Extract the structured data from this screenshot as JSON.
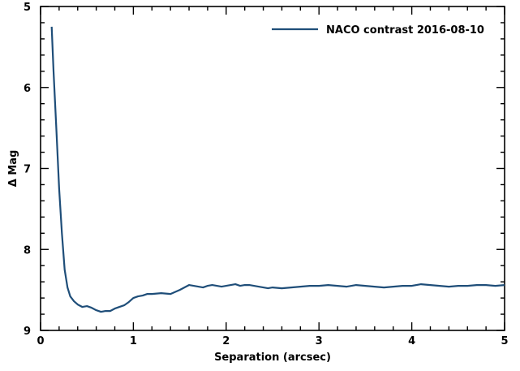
{
  "chart_data": {
    "type": "line",
    "title": "",
    "xlabel": "Separation (arcsec)",
    "ylabel": "Δ Mag",
    "xlim": [
      0,
      5
    ],
    "ylim": [
      5,
      9
    ],
    "y_inverted": true,
    "x_ticks": [
      0,
      1,
      2,
      3,
      4,
      5
    ],
    "y_ticks": [
      5,
      6,
      7,
      8,
      9
    ],
    "grid": false,
    "legend_position": "top-right",
    "series": [
      {
        "name": "NACO contrast 2016-08-10",
        "color": "#1f4e79",
        "x": [
          0.12,
          0.14,
          0.17,
          0.2,
          0.23,
          0.26,
          0.29,
          0.32,
          0.36,
          0.4,
          0.45,
          0.5,
          0.55,
          0.6,
          0.65,
          0.7,
          0.75,
          0.8,
          0.85,
          0.9,
          0.95,
          1.0,
          1.05,
          1.1,
          1.15,
          1.2,
          1.3,
          1.4,
          1.5,
          1.55,
          1.6,
          1.65,
          1.7,
          1.75,
          1.8,
          1.85,
          1.9,
          1.95,
          2.0,
          2.05,
          2.1,
          2.15,
          2.2,
          2.25,
          2.3,
          2.35,
          2.4,
          2.45,
          2.5,
          2.6,
          2.7,
          2.8,
          2.9,
          3.0,
          3.1,
          3.2,
          3.3,
          3.4,
          3.5,
          3.6,
          3.7,
          3.8,
          3.9,
          4.0,
          4.1,
          4.2,
          4.3,
          4.4,
          4.5,
          4.6,
          4.7,
          4.8,
          4.9,
          5.0
        ],
        "y": [
          5.25,
          5.8,
          6.5,
          7.25,
          7.8,
          8.25,
          8.47,
          8.58,
          8.64,
          8.68,
          8.71,
          8.7,
          8.72,
          8.75,
          8.77,
          8.76,
          8.76,
          8.73,
          8.71,
          8.69,
          8.65,
          8.6,
          8.58,
          8.57,
          8.55,
          8.55,
          8.54,
          8.55,
          8.5,
          8.47,
          8.44,
          8.45,
          8.46,
          8.47,
          8.45,
          8.44,
          8.45,
          8.46,
          8.45,
          8.44,
          8.43,
          8.45,
          8.44,
          8.44,
          8.45,
          8.46,
          8.47,
          8.48,
          8.47,
          8.48,
          8.47,
          8.46,
          8.45,
          8.45,
          8.44,
          8.45,
          8.46,
          8.44,
          8.45,
          8.46,
          8.47,
          8.46,
          8.45,
          8.45,
          8.43,
          8.44,
          8.45,
          8.46,
          8.45,
          8.45,
          8.44,
          8.44,
          8.45,
          8.44
        ]
      }
    ]
  }
}
